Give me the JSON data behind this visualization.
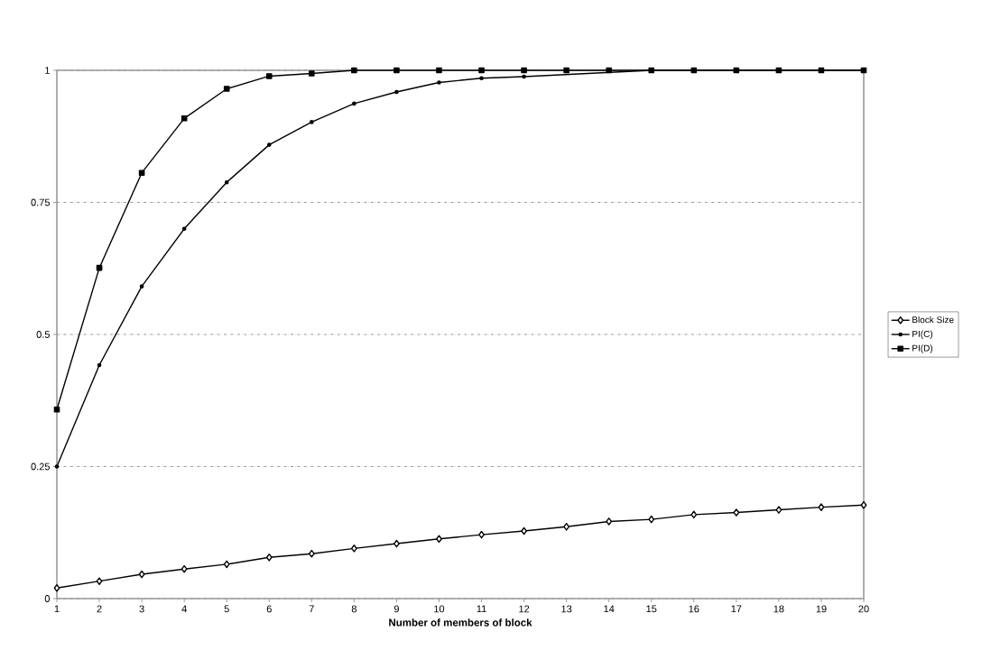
{
  "chart_data": {
    "type": "line",
    "xlabel": "Number of members of block",
    "x": [
      1,
      2,
      3,
      4,
      5,
      6,
      7,
      8,
      9,
      10,
      11,
      12,
      13,
      14,
      15,
      16,
      17,
      18,
      19,
      20
    ],
    "series": [
      {
        "name": "Block Size",
        "color": "#000000",
        "marker": "diamond",
        "values": [
          0.02,
          0.033,
          0.046,
          0.056,
          0.065,
          0.078,
          0.085,
          0.095,
          0.104,
          0.113,
          0.121,
          0.128,
          0.136,
          0.146,
          0.15,
          0.159,
          0.163,
          0.168,
          0.173,
          0.177
        ]
      },
      {
        "name": "PI(C)",
        "color": "#000000",
        "marker": "circle",
        "values": [
          0.25,
          0.442,
          0.591,
          0.7,
          0.788,
          0.859,
          0.902,
          0.937,
          0.959,
          0.977,
          0.985,
          0.988,
          null,
          null,
          1,
          1,
          1,
          1,
          1,
          1
        ]
      },
      {
        "name": "PI(D)",
        "color": "#000000",
        "marker": "square",
        "values": [
          0.358,
          0.626,
          0.806,
          0.909,
          0.965,
          0.989,
          0.994,
          1,
          1,
          1,
          1,
          1,
          1,
          1,
          1,
          1,
          1,
          1,
          1,
          1
        ]
      }
    ],
    "xlim": [
      1,
      20
    ],
    "xticks": [
      1,
      2,
      3,
      4,
      5,
      6,
      7,
      8,
      9,
      10,
      11,
      12,
      13,
      14,
      15,
      16,
      17,
      18,
      19,
      20
    ],
    "ylim": [
      0,
      1
    ],
    "yticks": [
      0,
      0.25,
      0.5,
      0.75,
      1
    ],
    "grid": "y",
    "legend": "right",
    "line_style": "solid"
  }
}
